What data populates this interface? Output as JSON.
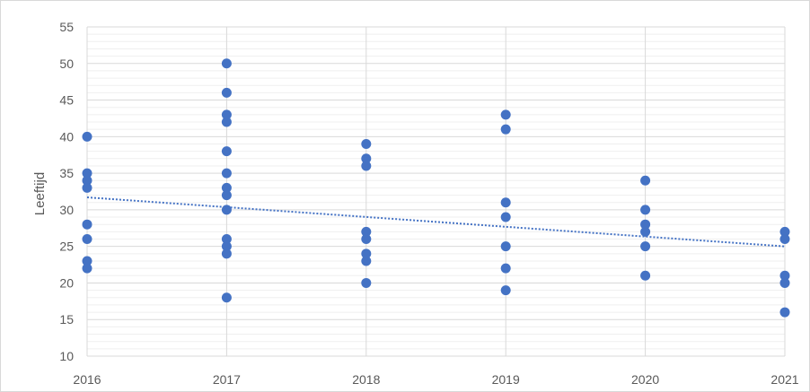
{
  "chart_data": {
    "type": "scatter",
    "title": "",
    "xlabel": "",
    "ylabel": "Leeftijd",
    "xlim": [
      2016,
      2021
    ],
    "ylim": [
      10,
      55
    ],
    "xticks": [
      2016,
      2017,
      2018,
      2019,
      2020,
      2021
    ],
    "yticks": [
      10,
      15,
      20,
      25,
      30,
      35,
      40,
      45,
      50,
      55
    ],
    "grid": {
      "major_y": true,
      "minor_y": true,
      "major_x": true
    },
    "legend": "none",
    "series": [
      {
        "marker": "circle",
        "color": "#4472C4",
        "points": [
          {
            "x": 2016,
            "y": 40
          },
          {
            "x": 2016,
            "y": 35
          },
          {
            "x": 2016,
            "y": 34
          },
          {
            "x": 2016,
            "y": 33
          },
          {
            "x": 2016,
            "y": 28
          },
          {
            "x": 2016,
            "y": 26
          },
          {
            "x": 2016,
            "y": 23
          },
          {
            "x": 2016,
            "y": 22
          },
          {
            "x": 2017,
            "y": 50
          },
          {
            "x": 2017,
            "y": 46
          },
          {
            "x": 2017,
            "y": 43
          },
          {
            "x": 2017,
            "y": 42
          },
          {
            "x": 2017,
            "y": 38
          },
          {
            "x": 2017,
            "y": 35
          },
          {
            "x": 2017,
            "y": 33
          },
          {
            "x": 2017,
            "y": 32
          },
          {
            "x": 2017,
            "y": 30
          },
          {
            "x": 2017,
            "y": 26
          },
          {
            "x": 2017,
            "y": 25
          },
          {
            "x": 2017,
            "y": 24
          },
          {
            "x": 2017,
            "y": 18
          },
          {
            "x": 2018,
            "y": 39
          },
          {
            "x": 2018,
            "y": 37
          },
          {
            "x": 2018,
            "y": 36
          },
          {
            "x": 2018,
            "y": 27
          },
          {
            "x": 2018,
            "y": 26
          },
          {
            "x": 2018,
            "y": 24
          },
          {
            "x": 2018,
            "y": 23
          },
          {
            "x": 2018,
            "y": 20
          },
          {
            "x": 2019,
            "y": 43
          },
          {
            "x": 2019,
            "y": 41
          },
          {
            "x": 2019,
            "y": 31
          },
          {
            "x": 2019,
            "y": 29
          },
          {
            "x": 2019,
            "y": 25
          },
          {
            "x": 2019,
            "y": 22
          },
          {
            "x": 2019,
            "y": 19
          },
          {
            "x": 2020,
            "y": 34
          },
          {
            "x": 2020,
            "y": 30
          },
          {
            "x": 2020,
            "y": 28
          },
          {
            "x": 2020,
            "y": 27
          },
          {
            "x": 2020,
            "y": 25
          },
          {
            "x": 2020,
            "y": 21
          },
          {
            "x": 2021,
            "y": 27
          },
          {
            "x": 2021,
            "y": 26
          },
          {
            "x": 2021,
            "y": 21
          },
          {
            "x": 2021,
            "y": 20
          },
          {
            "x": 2021,
            "y": 16
          }
        ]
      }
    ],
    "trendline": {
      "type": "linear",
      "style": "dotted",
      "color": "#4472C4",
      "points": [
        {
          "x": 2016,
          "y": 31.7
        },
        {
          "x": 2021,
          "y": 25.0
        }
      ]
    }
  }
}
